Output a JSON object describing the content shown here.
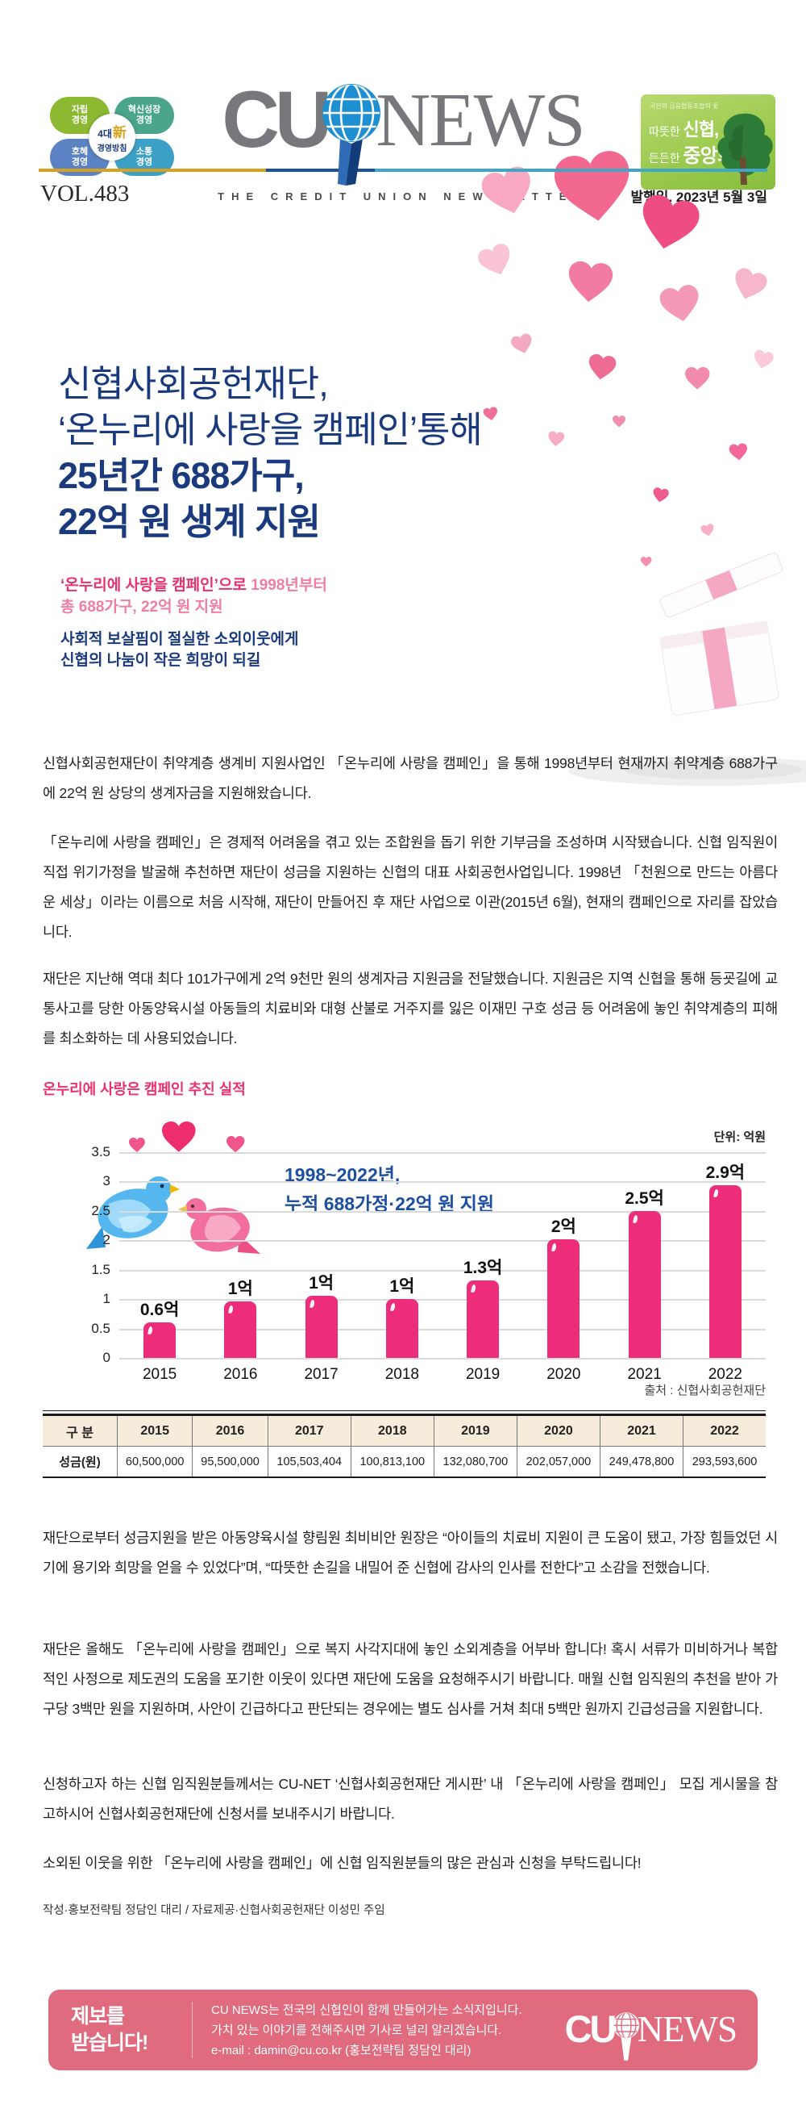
{
  "header": {
    "principles": {
      "center": {
        "top": "4대",
        "hanja": "新",
        "bottom": "경영방침"
      },
      "items": [
        {
          "label": "자립 경영",
          "color": "#8cb832"
        },
        {
          "label": "혁신성장 경영",
          "color": "#4aa58b"
        },
        {
          "label": "호혜 경영",
          "color": "#5b82c2"
        },
        {
          "label": "소통 경영",
          "color": "#3da0c7"
        }
      ]
    },
    "logo": {
      "cu": "CU",
      "news": "NEWS"
    },
    "tagline": "THE CREDIT UNION NEWSLETTER",
    "vol": "VOL.483",
    "issue_date": "발행일. 2023년 5월 3일",
    "badge": {
      "small": "국민의 금융협동조합의 꽃",
      "warm": "따뜻한 ",
      "shinhyup": "신협,",
      "solid": "든든한 ",
      "jungang": "중앙회"
    }
  },
  "hero": {
    "title_lines": [
      "신협사회공헌재단,",
      "‘온누리에 사랑을 캠페인’통해",
      "25년간 688가구,",
      "22억 원 생계 지원"
    ],
    "pink_strong": "‘온누리에 사랑을 캠페인’으로",
    "pink_rest": " 1998년부터",
    "pink_line2": "총 688가구, 22억 원 지원",
    "navy_line1": "사회적 보살핌이 절실한 소외이웃에게",
    "navy_line2": "신협의 나눔이 작은 희망이 되길"
  },
  "article": {
    "paragraphs": [
      "신협사회공헌재단이 취약계층 생계비 지원사업인 「온누리에 사랑을 캠페인」을 통해 1998년부터 현재까지 취약계층 688가구에 22억 원 상당의 생계자금을 지원해왔습니다.",
      "「온누리에 사랑을 캠페인」은 경제적 어려움을 겪고 있는 조합원을 돕기 위한 기부금을 조성하며 시작됐습니다. 신협 임직원이 직접 위기가정을 발굴해 추천하면 재단이 성금을 지원하는 신협의 대표 사회공헌사업입니다. 1998년 「천원으로 만드는 아름다운 세상」이라는 이름으로 처음 시작해, 재단이 만들어진 후 재단 사업으로 이관(2015년 6월), 현재의 캠페인으로 자리를 잡았습니다.",
      "재단은 지난해 역대 최다 101가구에게 2억 9천만 원의 생계자금 지원금을 전달했습니다. 지원금은 지역 신협을 통해 등굣길에 교통사고를 당한 아동양육시설 아동들의 치료비와 대형 산불로 거주지를 잃은 이재민 구호 성금 등 어려움에 놓인 취약계층의 피해를 최소화하는 데 사용되었습니다.",
      "재단으로부터 성금지원을 받은 아동양육시설 향림원 최비비안 원장은 “아이들의 치료비 지원이 큰 도움이 됐고, 가장 힘들었던 시기에  용기와 희망을 얻을 수 있었다”며, “따뜻한 손길을 내밀어 준 신협에 감사의 인사를 전한다”고 소감을 전했습니다.",
      "재단은 올해도 「온누리에 사랑을 캠페인」으로 복지 사각지대에 놓인 소외계층을 어부바 합니다! 혹시 서류가 미비하거나 복합적인 사정으로 제도권의 도움을 포기한 이웃이 있다면 재단에 도움을 요청해주시기 바랍니다. 매월 신협 임직원의 추천을 받아 가구당 3백만 원을 지원하며, 사안이 긴급하다고 판단되는 경우에는 별도 심사를 거쳐 최대 5백만 원까지 긴급성금을 지원합니다.",
      "신청하고자 하는 신협 임직원분들께서는 CU-NET ‘신협사회공헌재단 게시판’ 내 「온누리에 사랑을 캠페인」 모집 게시물을 참고하시어 신협사회공헌재단에 신청서를 보내주시기 바랍니다.",
      "소외된 이웃을 위한 「온누리에 사랑을 캠페인」에 신협 임직원분들의 많은 관심과 신청을 부탁드립니다!"
    ],
    "section_heading": "온누리에 사랑은 캠페인 추진 실적",
    "credit": "작성·홍보전략팀 정담인 대리 / 자료제공·신협사회공헌재단 이성민 주임"
  },
  "chart_data": {
    "type": "bar",
    "title": "온누리에 사랑은 캠페인 추진 실적",
    "unit_label": "단위: 억원",
    "source": "출처 : 신협사회공헌재단",
    "annotation_lines": [
      "1998~2022년,",
      "누적 688가정·22억 원 지원"
    ],
    "categories": [
      "2015",
      "2016",
      "2017",
      "2018",
      "2019",
      "2020",
      "2021",
      "2022"
    ],
    "values": [
      0.605,
      0.955,
      1.055,
      1.008,
      1.321,
      2.021,
      2.495,
      2.936
    ],
    "value_labels": [
      "0.6억",
      "1억",
      "1억",
      "1억",
      "1.3억",
      "2억",
      "2.5억",
      "2.9억"
    ],
    "ticks": [
      0,
      0.5,
      1,
      1.5,
      2,
      2.5,
      3,
      3.5
    ],
    "tick_labels": [
      "0",
      "0.5",
      "1",
      "1.5",
      "2",
      "2.5",
      "3",
      "3.5"
    ],
    "ylim": [
      0,
      3.5
    ],
    "bar_color": "#ed2d79",
    "grid": true,
    "legend_position": "none",
    "xlabel": "",
    "ylabel": ""
  },
  "table": {
    "headers": [
      "구 분",
      "2015",
      "2016",
      "2017",
      "2018",
      "2019",
      "2020",
      "2021",
      "2022"
    ],
    "rows": [
      [
        "성금(원)",
        "60,500,000",
        "95,500,000",
        "105,503,404",
        "100,813,100",
        "132,080,700",
        "202,057,000",
        "249,478,800",
        "293,593,600"
      ]
    ]
  },
  "footer": {
    "callout_line1": "제보를",
    "callout_line2": "받습니다!",
    "lines": [
      "CU NEWS는 전국의 신협인이 함께 만들어가는 소식지입니다.",
      "가치 있는 이야기를 전해주시면 기사로 널리 알리겠습니다.",
      "e-mail : damin@cu.co.kr (홍보전략팀 정담인 대리)"
    ],
    "logo": {
      "cu": "CU",
      "news": "NEWS"
    }
  },
  "colors": {
    "navy": "#1a3a7d",
    "pink": "#e8326e",
    "pink_light": "#ee7fa2",
    "bar": "#ed2d79",
    "annotation_blue": "#1d4fa0",
    "footer_bg": "#e06b7e",
    "table_header_bg": "#f7ecdc"
  }
}
